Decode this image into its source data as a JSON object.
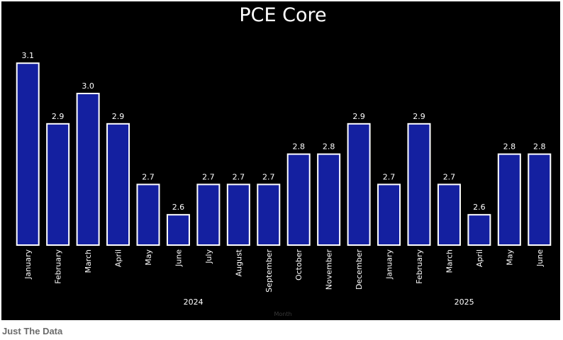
{
  "chart_data": {
    "type": "bar",
    "title": "PCE Core",
    "xlabel": "Month",
    "ylabel": "",
    "categories": [
      "January",
      "February",
      "March",
      "April",
      "May",
      "June",
      "July",
      "August",
      "September",
      "October",
      "November",
      "December",
      "January",
      "February",
      "March",
      "April",
      "May",
      "June"
    ],
    "years": [
      {
        "label": "2024",
        "first_index": 0,
        "last_index": 11
      },
      {
        "label": "2025",
        "first_index": 12,
        "last_index": 17
      }
    ],
    "values": [
      3.1,
      2.9,
      3.0,
      2.9,
      2.7,
      2.6,
      2.7,
      2.7,
      2.7,
      2.8,
      2.8,
      2.9,
      2.7,
      2.9,
      2.7,
      2.6,
      2.8,
      2.8
    ],
    "value_labels": [
      "3.1",
      "2.9",
      "3.0",
      "2.9",
      "2.7",
      "2.6",
      "2.7",
      "2.7",
      "2.7",
      "2.8",
      "2.8",
      "2.9",
      "2.7",
      "2.9",
      "2.7",
      "2.6",
      "2.8",
      "2.8"
    ],
    "ylim": [
      2.5,
      3.1
    ],
    "grid": false,
    "colors": {
      "background": "#000000",
      "bar_fill": "#1420a0",
      "bar_stroke": "#ffffff",
      "text": "#ffffff",
      "axis_title": "#3a3a3a"
    }
  },
  "footer": {
    "source": "Just The Data"
  }
}
